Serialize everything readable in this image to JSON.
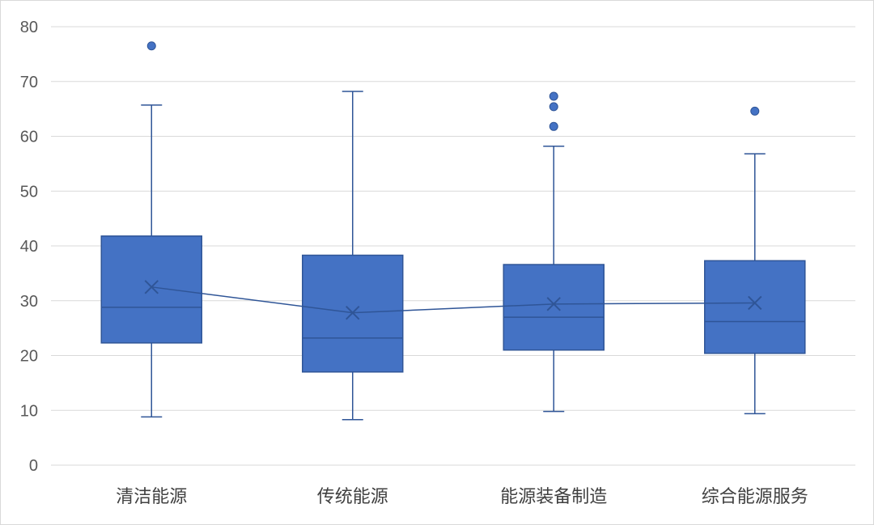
{
  "chart_data": {
    "type": "boxplot",
    "categories": [
      "清洁能源",
      "传统能源",
      "能源装备制造",
      "综合能源服务"
    ],
    "ylim": [
      0,
      80
    ],
    "yticks": [
      0,
      10,
      20,
      30,
      40,
      50,
      60,
      70,
      80
    ],
    "grid": true,
    "legend": "none",
    "mean_line": true,
    "boxes": [
      {
        "category": "清洁能源",
        "min": 8.8,
        "q1": 22.3,
        "median": 28.8,
        "q3": 41.8,
        "max": 65.7,
        "mean": 32.5,
        "outliers": [
          76.5
        ]
      },
      {
        "category": "传统能源",
        "min": 8.3,
        "q1": 17.0,
        "median": 23.2,
        "q3": 38.3,
        "max": 68.2,
        "mean": 27.8,
        "outliers": []
      },
      {
        "category": "能源装备制造",
        "min": 9.8,
        "q1": 21.0,
        "median": 27.0,
        "q3": 36.6,
        "max": 58.2,
        "mean": 29.4,
        "outliers": [
          61.8,
          65.4,
          67.3
        ]
      },
      {
        "category": "综合能源服务",
        "min": 9.4,
        "q1": 20.4,
        "median": 26.2,
        "q3": 37.3,
        "max": 56.8,
        "mean": 29.6,
        "outliers": [
          64.6
        ]
      }
    ],
    "colors": {
      "box": "#4472c4",
      "stroke": "#2f5597",
      "grid": "#d9d9d9"
    }
  }
}
